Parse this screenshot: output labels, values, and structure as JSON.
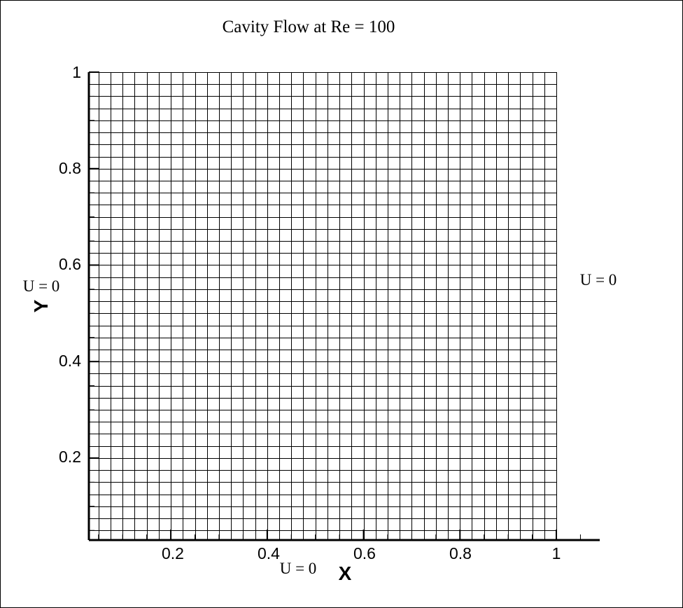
{
  "title": "Cavity Flow at Re = 100",
  "x_axis": {
    "label": "X",
    "tick_labels": [
      "0.2",
      "0.4",
      "0.6",
      "0.8",
      "1"
    ]
  },
  "y_axis": {
    "label": "Y",
    "tick_labels": [
      "0.2",
      "0.4",
      "0.6",
      "0.8",
      "1"
    ]
  },
  "boundary_labels": {
    "left": "U = 0",
    "right": "U = 0",
    "bottom": "U = 0"
  },
  "mesh": {
    "x_range": [
      0.0,
      1.0
    ],
    "y_range": [
      0.0,
      1.0
    ],
    "cells_x": 40,
    "cells_y": 40,
    "line_color": "#000000"
  },
  "axis_view": {
    "x_min": 0.03,
    "x_max": 1.09,
    "y_min": 0.03,
    "y_max": 1.0
  }
}
